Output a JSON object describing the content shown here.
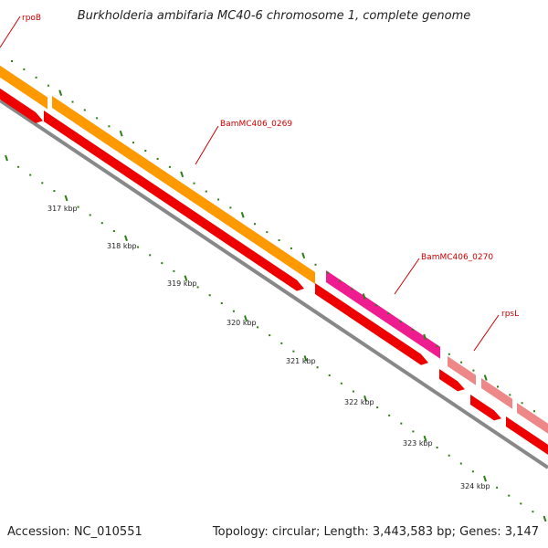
{
  "title": "Burkholderia ambifaria MC40-6 chromosome 1, complete genome",
  "footer": {
    "accession": "Accession: NC_010551",
    "topology": "Topology: circular; Length: 3,443,583 bp; Genes: 3,147"
  },
  "colors": {
    "backbone": "#888888",
    "tick_major": "#2e7d16",
    "tick_minor": "#2e7d16",
    "gene_label": "#cc0000",
    "cds": "#ee0000",
    "gene_orange": "#ff9900",
    "gene_magenta": "#ee1c8e",
    "gene_pink": "#ee8888"
  },
  "scale": {
    "unit": "kbp",
    "labels": [
      "317 kbp",
      "318 kbp",
      "319 kbp",
      "320 kbp",
      "321 kbp",
      "322 kbp",
      "323 kbp",
      "324 kbp"
    ]
  },
  "features": [
    {
      "label": "rpoB",
      "type": "gene",
      "color": "orange"
    },
    {
      "label": "BamMC406_0269",
      "type": "gene",
      "color": "orange"
    },
    {
      "label": "BamMC406_0270",
      "type": "gene",
      "color": "magenta"
    },
    {
      "label": "rpsL",
      "type": "gene",
      "color": "pink"
    }
  ]
}
